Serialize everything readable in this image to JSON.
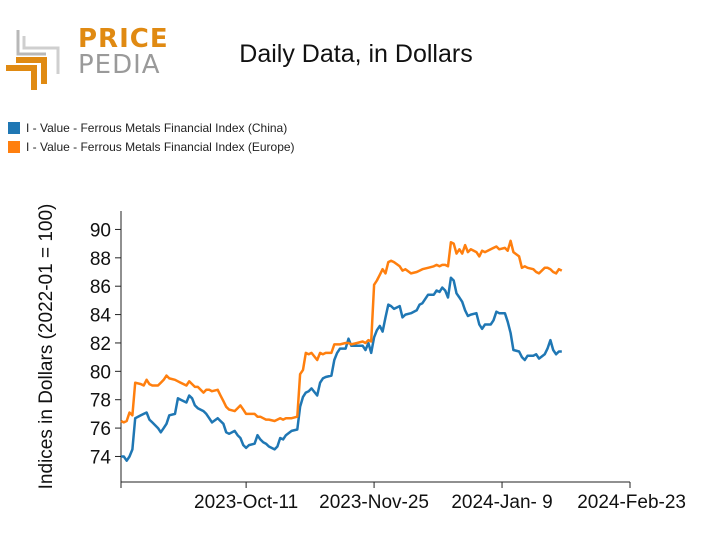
{
  "brand": {
    "line1": "PRICE",
    "line2": "PEDIA"
  },
  "colors": {
    "china": "#1f77b4",
    "europe": "#ff7f0e",
    "brand_orange": "#e08a12",
    "brand_gray": "#9a9a9a"
  },
  "chart_data": {
    "type": "line",
    "title": "Daily Data, in Dollars",
    "ylabel": "Indices in Dollars (2022-01 = 100)",
    "xlabel": "",
    "ylim": [
      72.2,
      91.3
    ],
    "yticks": [
      74,
      76,
      78,
      80,
      82,
      84,
      86,
      88,
      90
    ],
    "x_range": [
      "2023-08-28",
      "2024-02-23"
    ],
    "xticks": [
      {
        "date": "2023-08-28",
        "label": ""
      },
      {
        "date": "2023-10-11",
        "label": "2023-Oct-11"
      },
      {
        "date": "2023-11-25",
        "label": "2023-Nov-25"
      },
      {
        "date": "2024-01-09",
        "label": "2024-Jan- 9"
      },
      {
        "date": "2024-02-23",
        "label": "2024-Feb-23"
      }
    ],
    "legend_position": "top-left",
    "grid": false,
    "series": [
      {
        "name": "I - Value - Ferrous Metals Financial Index (China)",
        "color": "#1f77b4",
        "points": [
          [
            "2023-08-28",
            74.0
          ],
          [
            "2023-08-29",
            74.0
          ],
          [
            "2023-08-30",
            73.7
          ],
          [
            "2023-08-31",
            74.0
          ],
          [
            "2023-09-01",
            74.5
          ],
          [
            "2023-09-02",
            76.7
          ],
          [
            "2023-09-04",
            76.9
          ],
          [
            "2023-09-05",
            77.0
          ],
          [
            "2023-09-06",
            77.1
          ],
          [
            "2023-09-07",
            76.6
          ],
          [
            "2023-09-08",
            76.4
          ],
          [
            "2023-09-10",
            76.0
          ],
          [
            "2023-09-11",
            75.7
          ],
          [
            "2023-09-12",
            76.0
          ],
          [
            "2023-09-13",
            76.3
          ],
          [
            "2023-09-14",
            76.9
          ],
          [
            "2023-09-16",
            77.0
          ],
          [
            "2023-09-17",
            78.1
          ],
          [
            "2023-09-18",
            78.0
          ],
          [
            "2023-09-20",
            77.8
          ],
          [
            "2023-09-21",
            78.3
          ],
          [
            "2023-09-22",
            78.1
          ],
          [
            "2023-09-23",
            77.6
          ],
          [
            "2023-09-24",
            77.4
          ],
          [
            "2023-09-26",
            77.2
          ],
          [
            "2023-09-27",
            77.0
          ],
          [
            "2023-09-28",
            76.7
          ],
          [
            "2023-09-29",
            76.4
          ],
          [
            "2023-10-01",
            76.7
          ],
          [
            "2023-10-02",
            76.5
          ],
          [
            "2023-10-03",
            76.3
          ],
          [
            "2023-10-04",
            75.7
          ],
          [
            "2023-10-05",
            75.6
          ],
          [
            "2023-10-07",
            75.8
          ],
          [
            "2023-10-08",
            75.5
          ],
          [
            "2023-10-09",
            75.3
          ],
          [
            "2023-10-10",
            74.8
          ],
          [
            "2023-10-11",
            74.6
          ],
          [
            "2023-10-12",
            74.8
          ],
          [
            "2023-10-14",
            74.9
          ],
          [
            "2023-10-15",
            75.5
          ],
          [
            "2023-10-16",
            75.2
          ],
          [
            "2023-10-17",
            75.0
          ],
          [
            "2023-10-18",
            74.9
          ],
          [
            "2023-10-19",
            74.7
          ],
          [
            "2023-10-21",
            74.5
          ],
          [
            "2023-10-22",
            74.7
          ],
          [
            "2023-10-23",
            75.3
          ],
          [
            "2023-10-24",
            75.2
          ],
          [
            "2023-10-25",
            75.5
          ],
          [
            "2023-10-27",
            75.8
          ],
          [
            "2023-10-29",
            75.9
          ],
          [
            "2023-10-30",
            77.5
          ],
          [
            "2023-10-31",
            78.2
          ],
          [
            "2023-11-01",
            78.5
          ],
          [
            "2023-11-02",
            78.6
          ],
          [
            "2023-11-03",
            78.8
          ],
          [
            "2023-11-05",
            78.3
          ],
          [
            "2023-11-06",
            79.2
          ],
          [
            "2023-11-07",
            79.5
          ],
          [
            "2023-11-08",
            79.6
          ],
          [
            "2023-11-10",
            79.7
          ],
          [
            "2023-11-11",
            80.8
          ],
          [
            "2023-11-12",
            81.3
          ],
          [
            "2023-11-13",
            81.6
          ],
          [
            "2023-11-15",
            81.6
          ],
          [
            "2023-11-16",
            82.3
          ],
          [
            "2023-11-17",
            81.8
          ],
          [
            "2023-11-19",
            81.8
          ],
          [
            "2023-11-21",
            81.8
          ],
          [
            "2023-11-22",
            81.5
          ],
          [
            "2023-11-23",
            82.0
          ],
          [
            "2023-11-24",
            81.3
          ],
          [
            "2023-11-25",
            82.4
          ],
          [
            "2023-11-26",
            82.9
          ],
          [
            "2023-11-27",
            83.2
          ],
          [
            "2023-11-28",
            82.8
          ],
          [
            "2023-11-29",
            83.8
          ],
          [
            "2023-11-30",
            84.7
          ],
          [
            "2023-12-01",
            84.6
          ],
          [
            "2023-12-02",
            84.4
          ],
          [
            "2023-12-04",
            84.6
          ],
          [
            "2023-12-05",
            83.8
          ],
          [
            "2023-12-06",
            84.0
          ],
          [
            "2023-12-08",
            84.1
          ],
          [
            "2023-12-10",
            84.3
          ],
          [
            "2023-12-11",
            84.7
          ],
          [
            "2023-12-12",
            84.8
          ],
          [
            "2023-12-14",
            85.4
          ],
          [
            "2023-12-16",
            85.4
          ],
          [
            "2023-12-17",
            85.7
          ],
          [
            "2023-12-18",
            85.6
          ],
          [
            "2023-12-19",
            85.9
          ],
          [
            "2023-12-20",
            85.7
          ],
          [
            "2023-12-21",
            85.2
          ],
          [
            "2023-12-22",
            86.6
          ],
          [
            "2023-12-23",
            86.4
          ],
          [
            "2023-12-24",
            85.5
          ],
          [
            "2023-12-25",
            85.2
          ],
          [
            "2023-12-26",
            84.9
          ],
          [
            "2023-12-27",
            84.3
          ],
          [
            "2023-12-28",
            83.9
          ],
          [
            "2023-12-29",
            84.0
          ],
          [
            "2023-12-31",
            84.1
          ],
          [
            "2024-01-01",
            83.3
          ],
          [
            "2024-01-02",
            83.0
          ],
          [
            "2024-01-03",
            83.3
          ],
          [
            "2024-01-05",
            83.3
          ],
          [
            "2024-01-06",
            83.6
          ],
          [
            "2024-01-07",
            84.2
          ],
          [
            "2024-01-08",
            84.1
          ],
          [
            "2024-01-10",
            84.1
          ],
          [
            "2024-01-11",
            83.5
          ],
          [
            "2024-01-12",
            82.7
          ],
          [
            "2024-01-13",
            81.5
          ],
          [
            "2024-01-15",
            81.4
          ],
          [
            "2024-01-16",
            81.0
          ],
          [
            "2024-01-17",
            80.8
          ],
          [
            "2024-01-18",
            81.1
          ],
          [
            "2024-01-20",
            81.1
          ],
          [
            "2024-01-21",
            81.2
          ],
          [
            "2024-01-22",
            80.9
          ],
          [
            "2024-01-24",
            81.2
          ],
          [
            "2024-01-25",
            81.6
          ],
          [
            "2024-01-26",
            82.2
          ],
          [
            "2024-01-27",
            81.5
          ],
          [
            "2024-01-28",
            81.2
          ],
          [
            "2024-01-29",
            81.4
          ],
          [
            "2024-01-30",
            81.4
          ]
        ]
      },
      {
        "name": "I - Value - Ferrous Metals Financial Index (Europe)",
        "color": "#ff7f0e",
        "points": [
          [
            "2023-08-28",
            76.5
          ],
          [
            "2023-08-29",
            76.4
          ],
          [
            "2023-08-30",
            76.5
          ],
          [
            "2023-08-31",
            77.1
          ],
          [
            "2023-09-01",
            76.9
          ],
          [
            "2023-09-02",
            79.2
          ],
          [
            "2023-09-04",
            79.1
          ],
          [
            "2023-09-05",
            79.0
          ],
          [
            "2023-09-06",
            79.4
          ],
          [
            "2023-09-07",
            79.1
          ],
          [
            "2023-09-08",
            79.0
          ],
          [
            "2023-09-10",
            79.0
          ],
          [
            "2023-09-11",
            79.2
          ],
          [
            "2023-09-12",
            79.4
          ],
          [
            "2023-09-13",
            79.7
          ],
          [
            "2023-09-14",
            79.5
          ],
          [
            "2023-09-16",
            79.4
          ],
          [
            "2023-09-17",
            79.3
          ],
          [
            "2023-09-18",
            79.2
          ],
          [
            "2023-09-20",
            79.0
          ],
          [
            "2023-09-21",
            79.3
          ],
          [
            "2023-09-22",
            79.1
          ],
          [
            "2023-09-23",
            78.9
          ],
          [
            "2023-09-24",
            78.9
          ],
          [
            "2023-09-26",
            78.5
          ],
          [
            "2023-09-27",
            78.7
          ],
          [
            "2023-09-28",
            78.7
          ],
          [
            "2023-09-29",
            78.6
          ],
          [
            "2023-10-01",
            78.7
          ],
          [
            "2023-10-02",
            78.3
          ],
          [
            "2023-10-03",
            77.9
          ],
          [
            "2023-10-04",
            77.5
          ],
          [
            "2023-10-05",
            77.3
          ],
          [
            "2023-10-07",
            77.2
          ],
          [
            "2023-10-08",
            77.4
          ],
          [
            "2023-10-09",
            77.6
          ],
          [
            "2023-10-10",
            77.3
          ],
          [
            "2023-10-11",
            77.0
          ],
          [
            "2023-10-12",
            77.0
          ],
          [
            "2023-10-14",
            77.0
          ],
          [
            "2023-10-15",
            76.8
          ],
          [
            "2023-10-16",
            76.8
          ],
          [
            "2023-10-17",
            76.7
          ],
          [
            "2023-10-18",
            76.6
          ],
          [
            "2023-10-19",
            76.6
          ],
          [
            "2023-10-21",
            76.5
          ],
          [
            "2023-10-22",
            76.6
          ],
          [
            "2023-10-23",
            76.7
          ],
          [
            "2023-10-24",
            76.6
          ],
          [
            "2023-10-25",
            76.7
          ],
          [
            "2023-10-27",
            76.7
          ],
          [
            "2023-10-29",
            76.8
          ],
          [
            "2023-10-30",
            79.8
          ],
          [
            "2023-10-31",
            80.1
          ],
          [
            "2023-11-01",
            81.3
          ],
          [
            "2023-11-02",
            81.2
          ],
          [
            "2023-11-03",
            81.3
          ],
          [
            "2023-11-05",
            80.8
          ],
          [
            "2023-11-06",
            81.3
          ],
          [
            "2023-11-07",
            81.2
          ],
          [
            "2023-11-08",
            81.3
          ],
          [
            "2023-11-10",
            81.3
          ],
          [
            "2023-11-11",
            81.9
          ],
          [
            "2023-11-12",
            81.9
          ],
          [
            "2023-11-13",
            81.9
          ],
          [
            "2023-11-15",
            82.0
          ],
          [
            "2023-11-16",
            82.0
          ],
          [
            "2023-11-17",
            81.9
          ],
          [
            "2023-11-19",
            82.0
          ],
          [
            "2023-11-21",
            82.1
          ],
          [
            "2023-11-22",
            82.0
          ],
          [
            "2023-11-23",
            82.2
          ],
          [
            "2023-11-24",
            82.1
          ],
          [
            "2023-11-25",
            86.1
          ],
          [
            "2023-11-26",
            86.4
          ],
          [
            "2023-11-27",
            86.8
          ],
          [
            "2023-11-28",
            87.2
          ],
          [
            "2023-11-29",
            86.9
          ],
          [
            "2023-11-30",
            87.7
          ],
          [
            "2023-12-01",
            87.8
          ],
          [
            "2023-12-02",
            87.7
          ],
          [
            "2023-12-04",
            87.4
          ],
          [
            "2023-12-05",
            87.1
          ],
          [
            "2023-12-06",
            87.2
          ],
          [
            "2023-12-08",
            86.9
          ],
          [
            "2023-12-10",
            87.0
          ],
          [
            "2023-12-11",
            87.1
          ],
          [
            "2023-12-12",
            87.2
          ],
          [
            "2023-12-14",
            87.3
          ],
          [
            "2023-12-16",
            87.4
          ],
          [
            "2023-12-17",
            87.5
          ],
          [
            "2023-12-18",
            87.4
          ],
          [
            "2023-12-19",
            87.5
          ],
          [
            "2023-12-20",
            87.5
          ],
          [
            "2023-12-21",
            87.4
          ],
          [
            "2023-12-22",
            89.1
          ],
          [
            "2023-12-23",
            89.0
          ],
          [
            "2023-12-24",
            88.3
          ],
          [
            "2023-12-25",
            88.6
          ],
          [
            "2023-12-26",
            88.3
          ],
          [
            "2023-12-27",
            88.9
          ],
          [
            "2023-12-28",
            88.4
          ],
          [
            "2023-12-29",
            88.6
          ],
          [
            "2023-12-31",
            88.4
          ],
          [
            "2024-01-01",
            88.1
          ],
          [
            "2024-01-02",
            88.5
          ],
          [
            "2024-01-03",
            88.4
          ],
          [
            "2024-01-05",
            88.6
          ],
          [
            "2024-01-06",
            88.7
          ],
          [
            "2024-01-07",
            88.8
          ],
          [
            "2024-01-08",
            88.6
          ],
          [
            "2024-01-10",
            88.7
          ],
          [
            "2024-01-11",
            88.5
          ],
          [
            "2024-01-12",
            89.2
          ],
          [
            "2024-01-13",
            88.4
          ],
          [
            "2024-01-15",
            88.1
          ],
          [
            "2024-01-16",
            87.3
          ],
          [
            "2024-01-17",
            87.4
          ],
          [
            "2024-01-18",
            87.3
          ],
          [
            "2024-01-20",
            87.2
          ],
          [
            "2024-01-21",
            87.0
          ],
          [
            "2024-01-22",
            86.9
          ],
          [
            "2024-01-24",
            87.3
          ],
          [
            "2024-01-25",
            87.3
          ],
          [
            "2024-01-26",
            87.2
          ],
          [
            "2024-01-27",
            87.0
          ],
          [
            "2024-01-28",
            86.9
          ],
          [
            "2024-01-29",
            87.2
          ],
          [
            "2024-01-30",
            87.1
          ]
        ]
      }
    ]
  }
}
